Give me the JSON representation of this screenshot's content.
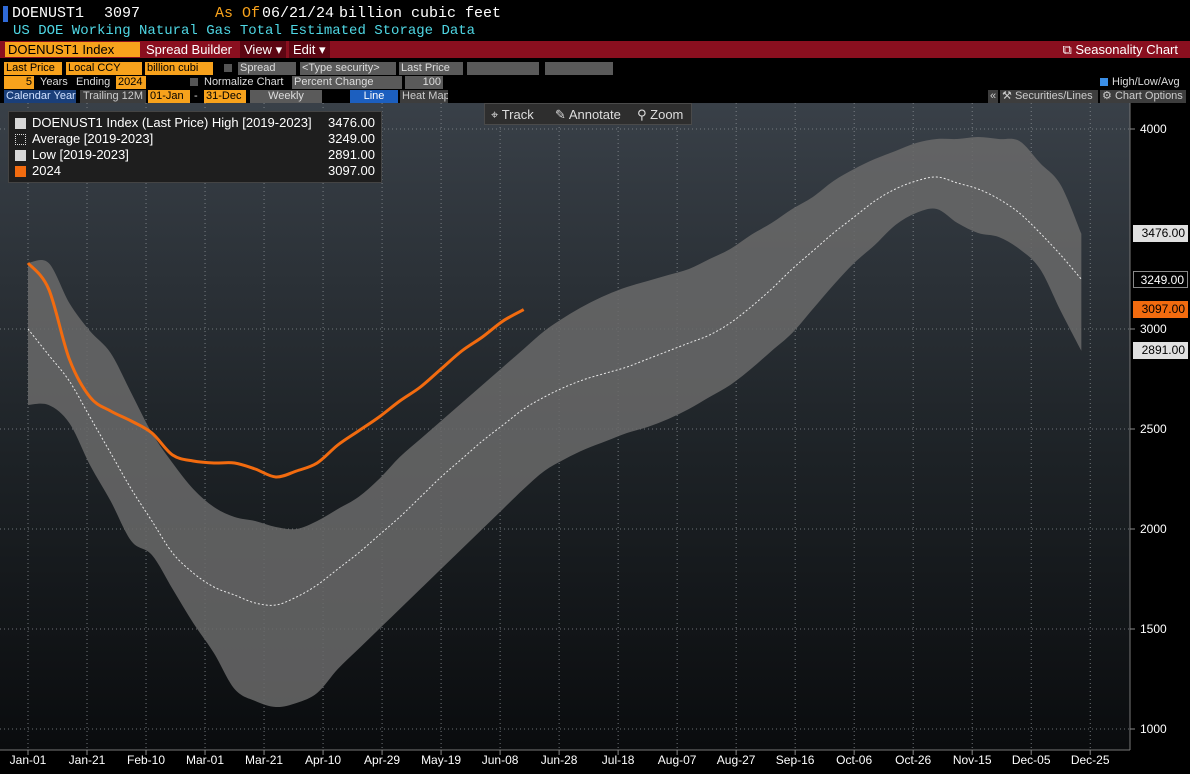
{
  "header": {
    "ticker": "DOENUST1",
    "last": "3097",
    "as_of_label": "As Of",
    "as_of_date": "06/21/24",
    "units": "billion cubic feet",
    "description": "US DOE Working Natural Gas Total Estimated Storage Data"
  },
  "menubar": {
    "security": "DOENUST1 Index",
    "spread_builder": "Spread Builder",
    "view": "View",
    "edit": "Edit",
    "seasonality": "Seasonality Chart"
  },
  "controls": {
    "field": "Last Price",
    "currency": "Local CCY",
    "units": "billion cubi",
    "spread": "Spread",
    "type_security": "<Type security>",
    "field2": "Last Price",
    "years": "5",
    "years_label": "Years",
    "ending_label": "Ending",
    "ending_year": "2024",
    "normalize_label": "Normalize Chart",
    "normalize_mode": "Percent Change",
    "normalize_value": "100",
    "hla_label": "High/Low/Avg",
    "calendar_year": "Calendar Year",
    "trailing": "Trailing 12M",
    "start": "01-Jan",
    "dash": "-",
    "end": "31-Dec",
    "frequency": "Weekly",
    "line": "Line",
    "heat_map": "Heat Map",
    "securities_lines": "Securities/Lines",
    "chart_options": "Chart Options"
  },
  "toolbar": {
    "track": "Track",
    "annotate": "Annotate",
    "zoom": "Zoom"
  },
  "legend": [
    {
      "label": "DOENUST1 Index (Last Price) High [2019-2023]",
      "value": "3476.00"
    },
    {
      "label": "Average  [2019-2023]",
      "value": "3249.00"
    },
    {
      "label": "Low  [2019-2023]",
      "value": "2891.00"
    },
    {
      "label": "2024",
      "value": "3097.00"
    }
  ],
  "tags": {
    "high": "3476.00",
    "avg": "3249.00",
    "current": "3097.00",
    "low": "2891.00"
  },
  "colors": {
    "current": "#f26b0f",
    "band": "#6a6a6a",
    "avg": "#e8e8e8",
    "tag_bg": "#d8d8d8"
  },
  "chart_data": {
    "type": "area",
    "x_ticks": [
      "Jan-01",
      "Jan-21",
      "Feb-10",
      "Mar-01",
      "Mar-21",
      "Apr-10",
      "Apr-29",
      "May-19",
      "Jun-08",
      "Jun-28",
      "Jul-18",
      "Aug-07",
      "Aug-27",
      "Sep-16",
      "Oct-06",
      "Oct-26",
      "Nov-15",
      "Dec-05",
      "Dec-25"
    ],
    "y_ticks": [
      1000,
      1500,
      2000,
      2500,
      3000,
      4000
    ],
    "ylim": [
      930,
      4100
    ],
    "x_day_of_year": [
      1,
      8,
      15,
      22,
      29,
      36,
      43,
      50,
      57,
      64,
      71,
      78,
      85,
      92,
      99,
      106,
      113,
      120,
      127,
      134,
      141,
      148,
      155,
      162,
      169,
      176,
      183,
      190,
      197,
      204,
      211,
      218,
      225,
      232,
      239,
      246,
      253,
      260,
      267,
      274,
      281,
      288,
      295,
      302,
      309,
      316,
      323,
      330,
      337,
      344,
      351,
      358
    ],
    "series": [
      {
        "name": "DOENUST1 Index (Last Price) High [2019-2023]",
        "values": [
          3330,
          3330,
          3130,
          2990,
          2880,
          2680,
          2480,
          2330,
          2200,
          2110,
          2060,
          2040,
          2010,
          2000,
          2040,
          2100,
          2160,
          2250,
          2360,
          2450,
          2540,
          2630,
          2720,
          2810,
          2900,
          2990,
          3060,
          3120,
          3170,
          3210,
          3240,
          3270,
          3300,
          3350,
          3400,
          3470,
          3530,
          3600,
          3660,
          3740,
          3800,
          3850,
          3890,
          3930,
          3950,
          3950,
          3960,
          3950,
          3940,
          3830,
          3720,
          3476
        ]
      },
      {
        "name": "Average  [2019-2023]",
        "values": [
          3000,
          2870,
          2740,
          2560,
          2380,
          2200,
          2040,
          1880,
          1780,
          1710,
          1670,
          1630,
          1620,
          1660,
          1720,
          1800,
          1880,
          1970,
          2060,
          2160,
          2260,
          2350,
          2440,
          2520,
          2600,
          2660,
          2710,
          2750,
          2780,
          2810,
          2850,
          2890,
          2930,
          2970,
          3030,
          3110,
          3200,
          3300,
          3390,
          3480,
          3560,
          3640,
          3700,
          3740,
          3760,
          3730,
          3700,
          3650,
          3580,
          3480,
          3370,
          3249
        ]
      },
      {
        "name": "Low  [2019-2023]",
        "values": [
          2620,
          2620,
          2530,
          2320,
          2140,
          1940,
          1870,
          1700,
          1530,
          1380,
          1200,
          1140,
          1110,
          1130,
          1180,
          1300,
          1400,
          1500,
          1600,
          1700,
          1800,
          1900,
          2000,
          2100,
          2200,
          2290,
          2350,
          2400,
          2440,
          2480,
          2510,
          2550,
          2600,
          2660,
          2720,
          2800,
          2890,
          2980,
          3100,
          3220,
          3330,
          3420,
          3520,
          3580,
          3600,
          3530,
          3480,
          3460,
          3400,
          3300,
          3090,
          2891
        ]
      },
      {
        "name": "2024",
        "values": [
          3330,
          3200,
          2850,
          2660,
          2590,
          2540,
          2480,
          2370,
          2340,
          2330,
          2330,
          2300,
          2260,
          2290,
          2330,
          2420,
          2490,
          2560,
          2640,
          2710,
          2800,
          2890,
          2960,
          3040,
          3097
        ]
      }
    ]
  }
}
